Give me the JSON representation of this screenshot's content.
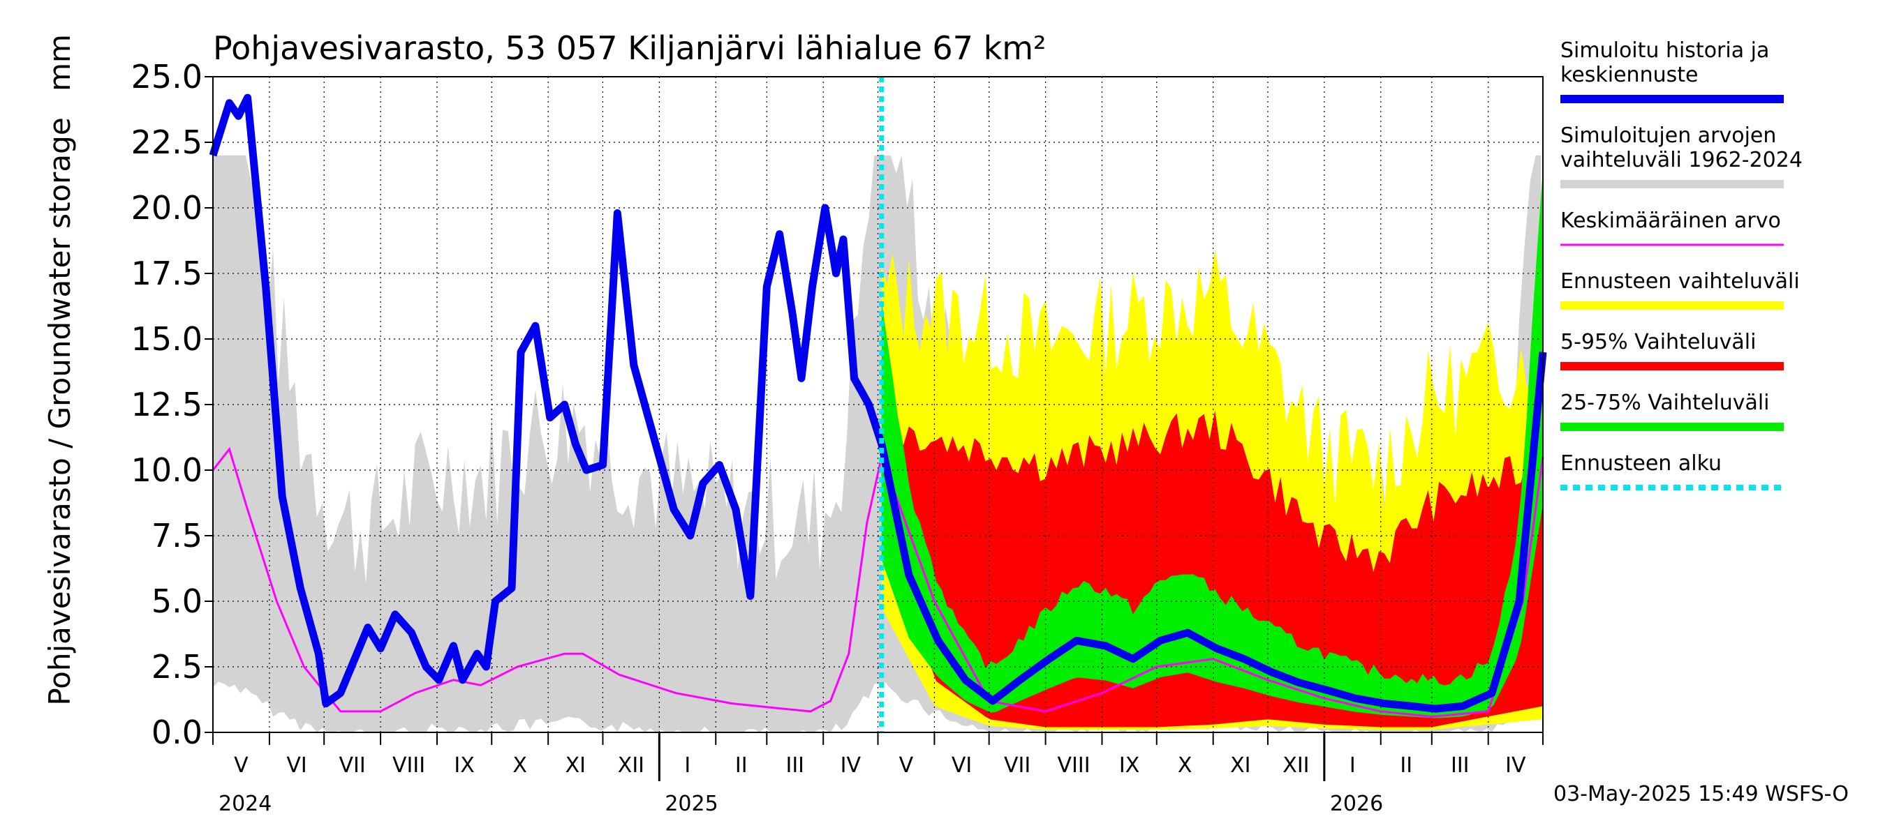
{
  "title": "Pohjavesivarasto, 53 057 Kiljanjärvi lähialue 67 km²",
  "ylabel": "Pohjavesivarasto / Groundwater storage",
  "yunit": "mm",
  "footer": "03-May-2025 15:49 WSFS-O",
  "colors": {
    "history": "#0000ee",
    "range_hist": "#d3d3d3",
    "mean": "#ff00ff",
    "fc_range": "#ffff00",
    "fc_5_95": "#ff0000",
    "fc_25_75": "#00ee00",
    "fc_start": "#00e5ee",
    "grid": "#000000",
    "bg": "#ffffff"
  },
  "legend": [
    {
      "label": "Simuloitu historia ja keskiennuste",
      "lines": [
        "Simuloitu historia ja",
        "keskiennuste"
      ],
      "color": "#0000ee",
      "style": "thick"
    },
    {
      "label": "Simuloitujen arvojen vaihteluväli 1962-2024",
      "lines": [
        "Simuloitujen arvojen",
        "vaihteluväli 1962-2024"
      ],
      "color": "#d3d3d3",
      "style": "thick"
    },
    {
      "label": "Keskimääräinen arvo",
      "lines": [
        "Keskimääräinen arvo"
      ],
      "color": "#ff00ff",
      "style": "thin"
    },
    {
      "label": "Ennusteen vaihteluväli",
      "lines": [
        "Ennusteen vaihteluväli"
      ],
      "color": "#ffff00",
      "style": "thick"
    },
    {
      "label": "5-95% Vaihteluväli",
      "lines": [
        "5-95% Vaihteluväli"
      ],
      "color": "#ff0000",
      "style": "thick"
    },
    {
      "label": "25-75% Vaihteluväli",
      "lines": [
        "25-75% Vaihteluväli"
      ],
      "color": "#00ee00",
      "style": "thick"
    },
    {
      "label": "Ennusteen alku",
      "lines": [
        "Ennusteen alku"
      ],
      "color": "#00e5ee",
      "style": "dashed"
    }
  ],
  "chart_data": {
    "type": "area",
    "ylim": [
      0,
      25
    ],
    "yticks": [
      "0.0",
      "2.5",
      "5.0",
      "7.5",
      "10.0",
      "12.5",
      "15.0",
      "17.5",
      "20.0",
      "22.5",
      "25.0"
    ],
    "months": [
      "V",
      "VI",
      "VII",
      "VIII",
      "IX",
      "X",
      "XI",
      "XII",
      "I",
      "II",
      "III",
      "IV",
      "V",
      "VI",
      "VII",
      "VIII",
      "IX",
      "X",
      "XI",
      "XII",
      "I",
      "II",
      "III",
      "IV"
    ],
    "years": [
      "2024",
      "2025",
      "2026"
    ],
    "x_axis_start": "2024-05-01",
    "x_axis_end": "2026-05-01",
    "forecast_start": "2025-05-03",
    "series": [
      {
        "name": "Simuloitu historia ja keskiennuste",
        "x": [
          "2024-05-01",
          "2024-05-10",
          "2024-05-15",
          "2024-05-20",
          "2024-05-30",
          "2024-06-08",
          "2024-06-18",
          "2024-06-28",
          "2024-07-02",
          "2024-07-10",
          "2024-07-16",
          "2024-07-25",
          "2024-08-01",
          "2024-08-09",
          "2024-08-18",
          "2024-08-26",
          "2024-09-02",
          "2024-09-10",
          "2024-09-15",
          "2024-09-23",
          "2024-09-28",
          "2024-10-03",
          "2024-10-12",
          "2024-10-17",
          "2024-10-25",
          "2024-11-02",
          "2024-11-10",
          "2024-11-16",
          "2024-11-22",
          "2024-12-01",
          "2024-12-09",
          "2024-12-18",
          "2025-01-01",
          "2025-01-09",
          "2025-01-18",
          "2025-01-25",
          "2025-02-03",
          "2025-02-12",
          "2025-02-20",
          "2025-03-01",
          "2025-03-08",
          "2025-03-15",
          "2025-03-20",
          "2025-03-26",
          "2025-04-02",
          "2025-04-08",
          "2025-04-12",
          "2025-04-18",
          "2025-04-26",
          "2025-05-03",
          "2025-05-18",
          "2025-06-03",
          "2025-06-18",
          "2025-07-03",
          "2025-07-18",
          "2025-08-03",
          "2025-08-18",
          "2025-09-03",
          "2025-09-18",
          "2025-10-03",
          "2025-10-18",
          "2025-11-03",
          "2025-11-18",
          "2025-12-03",
          "2025-12-18",
          "2026-01-03",
          "2026-01-18",
          "2026-02-03",
          "2026-02-18",
          "2026-03-03",
          "2026-03-18",
          "2026-04-03",
          "2026-04-18",
          "2026-05-01"
        ],
        "values": [
          22.0,
          24.0,
          23.5,
          24.2,
          17.0,
          9.0,
          5.5,
          3.0,
          1.1,
          1.5,
          2.5,
          4.0,
          3.2,
          4.5,
          3.8,
          2.5,
          2.0,
          3.3,
          2.0,
          3.0,
          2.5,
          5.0,
          5.5,
          14.5,
          15.5,
          12.0,
          12.5,
          11.0,
          10.0,
          10.2,
          19.8,
          14.0,
          10.5,
          8.5,
          7.5,
          9.5,
          10.2,
          8.5,
          5.2,
          17.0,
          19.0,
          16.0,
          13.5,
          17.0,
          20.0,
          17.5,
          18.8,
          13.5,
          12.5,
          11.0,
          6.0,
          3.5,
          2.0,
          1.2,
          2.0,
          2.8,
          3.5,
          3.3,
          2.8,
          3.5,
          3.8,
          3.2,
          2.8,
          2.3,
          1.9,
          1.6,
          1.3,
          1.1,
          1.0,
          0.9,
          1.0,
          1.5,
          5.0,
          14.5
        ]
      },
      {
        "name": "Keskimääräinen arvo",
        "x": [
          "2024-05-01",
          "2024-05-10",
          "2024-05-20",
          "2024-06-05",
          "2024-06-20",
          "2024-07-10",
          "2024-08-01",
          "2024-08-20",
          "2024-09-10",
          "2024-09-25",
          "2024-10-15",
          "2024-11-10",
          "2024-11-20",
          "2024-12-10",
          "2025-01-10",
          "2025-02-10",
          "2025-03-10",
          "2025-03-25",
          "2025-04-05",
          "2025-04-15",
          "2025-04-25",
          "2025-05-03",
          "2025-06-01",
          "2025-07-01",
          "2025-08-01",
          "2025-09-01",
          "2025-10-01",
          "2025-11-01",
          "2025-12-01",
          "2026-01-01",
          "2026-02-01",
          "2026-03-01",
          "2026-04-01",
          "2026-04-20",
          "2026-05-01"
        ],
        "values": [
          10.0,
          10.8,
          8.5,
          5.0,
          2.5,
          0.8,
          0.8,
          1.5,
          2.0,
          1.8,
          2.5,
          3.0,
          3.0,
          2.2,
          1.5,
          1.1,
          0.9,
          0.8,
          1.2,
          3.0,
          8.0,
          10.5,
          5.0,
          1.2,
          0.8,
          1.5,
          2.5,
          2.8,
          2.0,
          1.3,
          0.8,
          0.6,
          0.8,
          5.0,
          10.5
        ]
      },
      {
        "name": "5-95% Vaihteluväli",
        "upper": [
          11.0,
          10.5,
          10.0,
          9.5,
          10.0,
          10.5,
          11.0,
          9.0,
          6.5,
          6.0,
          8.0,
          9.5
        ],
        "lower": [
          9.5,
          2.0,
          0.5,
          0.2,
          0.2,
          0.2,
          0.3,
          0.5,
          0.3,
          0.2,
          0.2,
          1.0
        ],
        "x": [
          "2025-05-03",
          "2025-06-01",
          "2025-07-01",
          "2025-08-01",
          "2025-09-01",
          "2025-10-01",
          "2025-11-01",
          "2025-12-01",
          "2026-01-01",
          "2026-02-01",
          "2026-03-01",
          "2026-05-01"
        ]
      }
    ]
  }
}
